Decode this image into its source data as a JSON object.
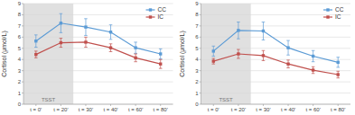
{
  "chart_data": [
    {
      "type": "line",
      "ylabel": "Cortisol (μmol/L)",
      "categories": [
        "t = 0'",
        "t = 20'",
        "t = 30'",
        "t = 40'",
        "t = 60'",
        "t = 80'"
      ],
      "series": [
        {
          "name": "CC",
          "color": "#5b9bd5",
          "marker": "square",
          "line_style": "solid",
          "values": [
            5.65,
            7.25,
            6.9,
            6.45,
            5.05,
            4.5
          ],
          "errors": [
            0.55,
            0.85,
            0.75,
            0.65,
            0.5,
            0.45
          ]
        },
        {
          "name": "IC",
          "color": "#c0504d",
          "marker": "square",
          "line_style": "solid",
          "values": [
            4.45,
            5.5,
            5.55,
            5.05,
            4.15,
            3.6
          ],
          "errors": [
            0.3,
            0.4,
            0.45,
            0.35,
            0.35,
            0.4
          ]
        }
      ],
      "annotations": [
        {
          "text": "TSST",
          "span": [
            "t = 0'",
            "t = 20'"
          ],
          "color": "#e0e0e0"
        }
      ],
      "ylim": [
        0,
        9
      ],
      "yticks": [
        0,
        1,
        2,
        3,
        4,
        5,
        6,
        7,
        8,
        9
      ],
      "grid": true,
      "legend": "upper right"
    },
    {
      "type": "line",
      "ylabel": "Cortisol (μmol/L)",
      "categories": [
        "t = 0'",
        "t = 20'",
        "t = 30'",
        "t = 40'",
        "t = 60'",
        "t = 80'"
      ],
      "series": [
        {
          "name": "CC",
          "color": "#5b9bd5",
          "marker": "square",
          "line_style": "solid",
          "values": [
            4.75,
            6.6,
            6.55,
            5.05,
            4.3,
            3.75
          ],
          "errors": [
            0.45,
            0.75,
            0.8,
            0.65,
            0.5,
            0.45
          ]
        },
        {
          "name": "IC",
          "color": "#c0504d",
          "marker": "square",
          "line_style": "solid",
          "values": [
            3.85,
            4.5,
            4.35,
            3.6,
            3.05,
            2.65
          ],
          "errors": [
            0.25,
            0.4,
            0.45,
            0.35,
            0.3,
            0.3
          ]
        }
      ],
      "annotations": [
        {
          "text": "TSST",
          "span": [
            "t = 0'",
            "t = 20'"
          ],
          "color": "#e0e0e0"
        }
      ],
      "ylim": [
        0,
        9
      ],
      "yticks": [
        0,
        1,
        2,
        3,
        4,
        5,
        6,
        7,
        8,
        9
      ],
      "grid": true,
      "legend": "upper right"
    }
  ]
}
